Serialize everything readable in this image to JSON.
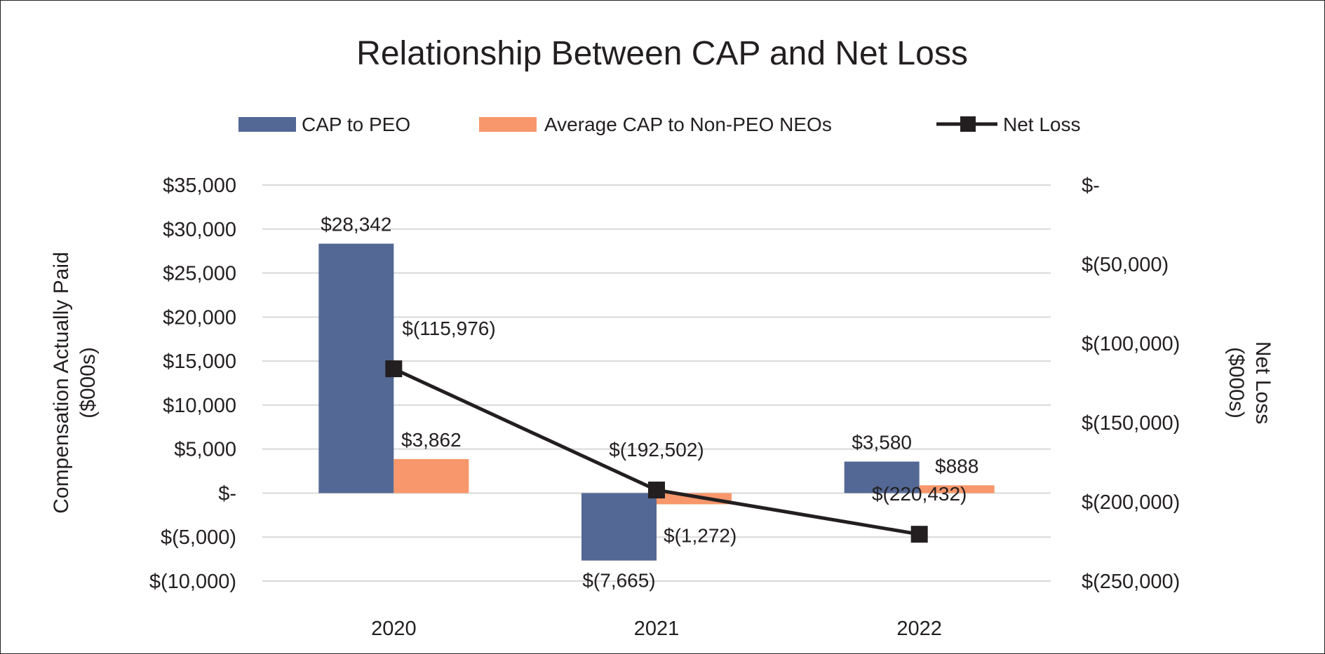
{
  "chart_data": {
    "type": "bar",
    "title": "Relationship Between CAP and Net Loss",
    "categories": [
      "2020",
      "2021",
      "2022"
    ],
    "series": [
      {
        "name": "CAP to PEO",
        "kind": "bar",
        "axis": "left",
        "color": "#536895",
        "values": [
          28342,
          -7665,
          3580
        ],
        "labels": [
          "$28,342",
          "$(7,665)",
          "$3,580"
        ]
      },
      {
        "name": "Average CAP to Non-PEO NEOs",
        "kind": "bar",
        "axis": "left",
        "color": "#f7976b",
        "values": [
          3862,
          -1272,
          888
        ],
        "labels": [
          "$3,862",
          "$(1,272)",
          "$888"
        ]
      },
      {
        "name": "Net Loss",
        "kind": "line",
        "axis": "right",
        "color": "#231f20",
        "values": [
          -115976,
          -192502,
          -220432
        ],
        "labels": [
          "$(115,976)",
          "$(192,502)",
          "$(220,432)"
        ]
      }
    ],
    "ylabel": [
      "Compensation Actually Paid",
      "($000s)"
    ],
    "y2label": [
      "Net Loss",
      "($000s)"
    ],
    "ylim": [
      -10000,
      35000
    ],
    "y2lim": [
      -250000,
      0
    ],
    "yticks": [
      {
        "v": 35000,
        "label": "$35,000"
      },
      {
        "v": 30000,
        "label": "$30,000"
      },
      {
        "v": 25000,
        "label": "$25,000"
      },
      {
        "v": 20000,
        "label": "$20,000"
      },
      {
        "v": 15000,
        "label": "$15,000"
      },
      {
        "v": 10000,
        "label": "$10,000"
      },
      {
        "v": 5000,
        "label": "$5,000"
      },
      {
        "v": 0,
        "label": "$-"
      },
      {
        "v": -5000,
        "label": "$(5,000)"
      },
      {
        "v": -10000,
        "label": "$(10,000)"
      }
    ],
    "y2ticks": [
      {
        "v": 0,
        "label": "$-"
      },
      {
        "v": -50000,
        "label": "$(50,000)"
      },
      {
        "v": -100000,
        "label": "$(100,000)"
      },
      {
        "v": -150000,
        "label": "$(150,000)"
      },
      {
        "v": -200000,
        "label": "$(200,000)"
      },
      {
        "v": -250000,
        "label": "$(250,000)"
      }
    ],
    "grid": true,
    "legend": "top-center",
    "gridColor": "#d9d9d9"
  }
}
